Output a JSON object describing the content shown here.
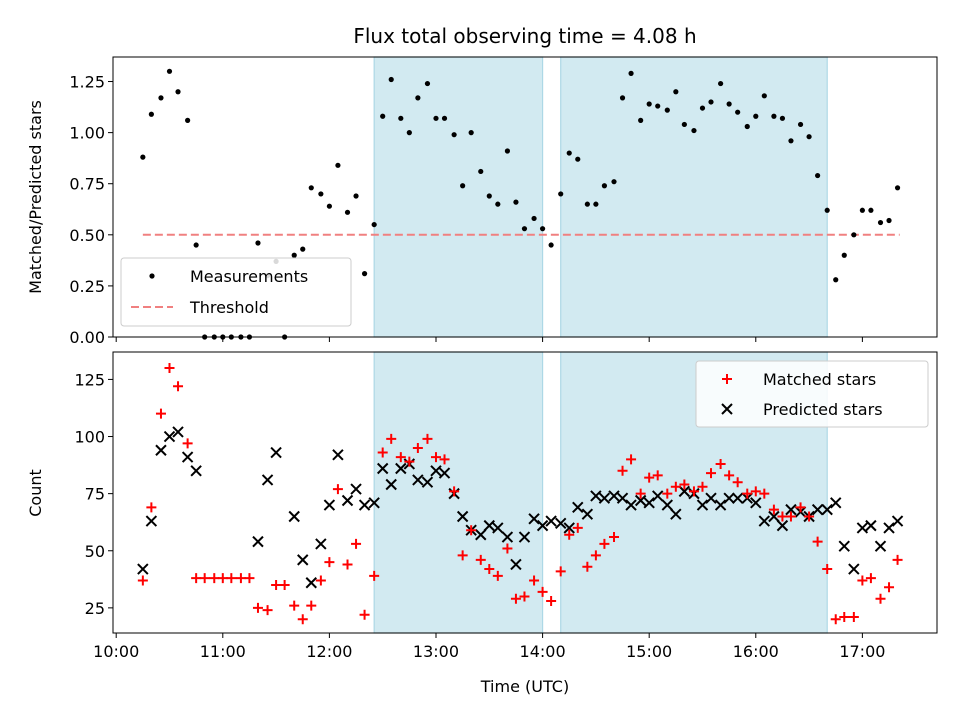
{
  "title": "Flux total observing time = 4.08 h",
  "colors": {
    "measurement": "#000000",
    "threshold": "#f08080",
    "matched": "#ff0000",
    "predicted": "#000000",
    "shade": "#add8e6"
  },
  "chart_data": [
    {
      "type": "scatter",
      "ylabel": "Matched/Predicted stars",
      "xlim": [
        9.97,
        17.7
      ],
      "ylim": [
        0.0,
        1.37
      ],
      "yticks": [
        0.0,
        0.25,
        0.5,
        0.75,
        1.0,
        1.25
      ],
      "ytick_labels": [
        "0.00",
        "0.25",
        "0.50",
        "0.75",
        "1.00",
        "1.25"
      ],
      "legend": {
        "location": "lower-left",
        "entries": [
          "Measurements",
          "Threshold"
        ]
      },
      "shaded_intervals": [
        [
          12.42,
          14.0
        ],
        [
          14.17,
          16.67
        ]
      ],
      "threshold": {
        "name": "Threshold",
        "y": 0.5,
        "x": [
          10.25,
          17.35
        ]
      },
      "series": [
        {
          "name": "Measurements",
          "points": [
            [
              10.25,
              0.88
            ],
            [
              10.33,
              1.09
            ],
            [
              10.42,
              1.17
            ],
            [
              10.5,
              1.3
            ],
            [
              10.58,
              1.2
            ],
            [
              10.67,
              1.06
            ],
            [
              10.75,
              0.45
            ],
            [
              10.83,
              0.0
            ],
            [
              10.92,
              0.0
            ],
            [
              11.0,
              0.0
            ],
            [
              11.08,
              0.0
            ],
            [
              11.17,
              0.0
            ],
            [
              11.25,
              0.0
            ],
            [
              11.33,
              0.46
            ],
            [
              11.42,
              0.3
            ],
            [
              11.5,
              0.37
            ],
            [
              11.58,
              0.0
            ],
            [
              11.67,
              0.4
            ],
            [
              11.75,
              0.43
            ],
            [
              11.83,
              0.73
            ],
            [
              11.92,
              0.7
            ],
            [
              12.0,
              0.64
            ],
            [
              12.08,
              0.84
            ],
            [
              12.17,
              0.61
            ],
            [
              12.25,
              0.69
            ],
            [
              12.33,
              0.31
            ],
            [
              12.42,
              0.55
            ],
            [
              12.5,
              1.08
            ],
            [
              12.58,
              1.26
            ],
            [
              12.67,
              1.07
            ],
            [
              12.75,
              1.0
            ],
            [
              12.83,
              1.17
            ],
            [
              12.92,
              1.24
            ],
            [
              13.0,
              1.07
            ],
            [
              13.08,
              1.07
            ],
            [
              13.17,
              0.99
            ],
            [
              13.25,
              0.74
            ],
            [
              13.33,
              1.0
            ],
            [
              13.42,
              0.81
            ],
            [
              13.5,
              0.69
            ],
            [
              13.58,
              0.65
            ],
            [
              13.67,
              0.91
            ],
            [
              13.75,
              0.66
            ],
            [
              13.83,
              0.53
            ],
            [
              13.92,
              0.58
            ],
            [
              14.0,
              0.53
            ],
            [
              14.08,
              0.45
            ],
            [
              14.17,
              0.7
            ],
            [
              14.25,
              0.9
            ],
            [
              14.33,
              0.87
            ],
            [
              14.42,
              0.65
            ],
            [
              14.5,
              0.65
            ],
            [
              14.58,
              0.74
            ],
            [
              14.67,
              0.76
            ],
            [
              14.75,
              1.17
            ],
            [
              14.83,
              1.29
            ],
            [
              14.92,
              1.06
            ],
            [
              15.0,
              1.14
            ],
            [
              15.08,
              1.13
            ],
            [
              15.17,
              1.11
            ],
            [
              15.25,
              1.2
            ],
            [
              15.33,
              1.04
            ],
            [
              15.42,
              1.01
            ],
            [
              15.5,
              1.12
            ],
            [
              15.58,
              1.15
            ],
            [
              15.67,
              1.24
            ],
            [
              15.75,
              1.14
            ],
            [
              15.83,
              1.1
            ],
            [
              15.92,
              1.03
            ],
            [
              16.0,
              1.08
            ],
            [
              16.08,
              1.18
            ],
            [
              16.17,
              1.08
            ],
            [
              16.25,
              1.07
            ],
            [
              16.33,
              0.96
            ],
            [
              16.42,
              1.04
            ],
            [
              16.5,
              0.98
            ],
            [
              16.58,
              0.79
            ],
            [
              16.67,
              0.62
            ],
            [
              16.75,
              0.28
            ],
            [
              16.83,
              0.4
            ],
            [
              16.92,
              0.5
            ],
            [
              17.0,
              0.62
            ],
            [
              17.08,
              0.62
            ],
            [
              17.17,
              0.56
            ],
            [
              17.25,
              0.57
            ],
            [
              17.33,
              0.73
            ]
          ]
        }
      ]
    },
    {
      "type": "scatter",
      "xlabel": "Time (UTC)",
      "ylabel": "Count",
      "xlim": [
        9.97,
        17.7
      ],
      "ylim": [
        14.0,
        137.0
      ],
      "yticks": [
        25,
        50,
        75,
        100,
        125
      ],
      "xticks": [
        10,
        11,
        12,
        13,
        14,
        15,
        16,
        17
      ],
      "xtick_labels": [
        "10:00",
        "11:00",
        "12:00",
        "13:00",
        "14:00",
        "15:00",
        "16:00",
        "17:00"
      ],
      "legend": {
        "location": "top-right",
        "entries": [
          "Matched stars",
          "Predicted stars"
        ]
      },
      "shaded_intervals": [
        [
          12.42,
          14.0
        ],
        [
          14.17,
          16.67
        ]
      ],
      "series": [
        {
          "name": "Matched stars",
          "marker": "+",
          "points": [
            [
              10.25,
              37
            ],
            [
              10.33,
              69
            ],
            [
              10.42,
              110
            ],
            [
              10.5,
              130
            ],
            [
              10.58,
              122
            ],
            [
              10.67,
              97
            ],
            [
              10.75,
              38
            ],
            [
              10.83,
              38
            ],
            [
              10.92,
              38
            ],
            [
              11.0,
              38
            ],
            [
              11.08,
              38
            ],
            [
              11.17,
              38
            ],
            [
              11.25,
              38
            ],
            [
              11.33,
              25
            ],
            [
              11.42,
              24
            ],
            [
              11.5,
              35
            ],
            [
              11.58,
              35
            ],
            [
              11.67,
              26
            ],
            [
              11.75,
              20
            ],
            [
              11.83,
              26
            ],
            [
              11.92,
              37
            ],
            [
              12.0,
              45
            ],
            [
              12.08,
              77
            ],
            [
              12.17,
              44
            ],
            [
              12.25,
              53
            ],
            [
              12.33,
              22
            ],
            [
              12.42,
              39
            ],
            [
              12.5,
              93
            ],
            [
              12.58,
              99
            ],
            [
              12.67,
              91
            ],
            [
              12.75,
              89
            ],
            [
              12.83,
              95
            ],
            [
              12.92,
              99
            ],
            [
              13.0,
              91
            ],
            [
              13.08,
              90
            ],
            [
              13.17,
              76
            ],
            [
              13.25,
              48
            ],
            [
              13.33,
              59
            ],
            [
              13.42,
              46
            ],
            [
              13.5,
              42
            ],
            [
              13.58,
              39
            ],
            [
              13.67,
              51
            ],
            [
              13.75,
              29
            ],
            [
              13.83,
              30
            ],
            [
              13.92,
              37
            ],
            [
              14.0,
              32
            ],
            [
              14.08,
              28
            ],
            [
              14.17,
              41
            ],
            [
              14.25,
              57
            ],
            [
              14.33,
              60
            ],
            [
              14.42,
              43
            ],
            [
              14.5,
              48
            ],
            [
              14.58,
              53
            ],
            [
              14.67,
              56
            ],
            [
              14.75,
              85
            ],
            [
              14.83,
              90
            ],
            [
              14.92,
              75
            ],
            [
              15.0,
              82
            ],
            [
              15.08,
              83
            ],
            [
              15.17,
              75
            ],
            [
              15.25,
              78
            ],
            [
              15.33,
              79
            ],
            [
              15.42,
              76
            ],
            [
              15.5,
              78
            ],
            [
              15.58,
              84
            ],
            [
              15.67,
              88
            ],
            [
              15.75,
              83
            ],
            [
              15.83,
              80
            ],
            [
              15.92,
              75
            ],
            [
              16.0,
              76
            ],
            [
              16.08,
              75
            ],
            [
              16.17,
              68
            ],
            [
              16.25,
              65
            ],
            [
              16.33,
              65
            ],
            [
              16.42,
              69
            ],
            [
              16.5,
              65
            ],
            [
              16.58,
              54
            ],
            [
              16.67,
              42
            ],
            [
              16.75,
              20
            ],
            [
              16.83,
              21
            ],
            [
              16.92,
              21
            ],
            [
              17.0,
              37
            ],
            [
              17.08,
              38
            ],
            [
              17.17,
              29
            ],
            [
              17.25,
              34
            ],
            [
              17.33,
              46
            ]
          ]
        },
        {
          "name": "Predicted stars",
          "marker": "x",
          "points": [
            [
              10.25,
              42
            ],
            [
              10.33,
              63
            ],
            [
              10.42,
              94
            ],
            [
              10.5,
              100
            ],
            [
              10.58,
              102
            ],
            [
              10.67,
              91
            ],
            [
              10.75,
              85
            ],
            [
              11.33,
              54
            ],
            [
              11.42,
              81
            ],
            [
              11.5,
              93
            ],
            [
              11.67,
              65
            ],
            [
              11.75,
              46
            ],
            [
              11.83,
              36
            ],
            [
              11.92,
              53
            ],
            [
              12.0,
              70
            ],
            [
              12.08,
              92
            ],
            [
              12.17,
              72
            ],
            [
              12.25,
              77
            ],
            [
              12.33,
              70
            ],
            [
              12.42,
              71
            ],
            [
              12.5,
              86
            ],
            [
              12.58,
              79
            ],
            [
              12.67,
              86
            ],
            [
              12.75,
              88
            ],
            [
              12.83,
              81
            ],
            [
              12.92,
              80
            ],
            [
              13.0,
              85
            ],
            [
              13.08,
              84
            ],
            [
              13.17,
              75
            ],
            [
              13.25,
              65
            ],
            [
              13.33,
              59
            ],
            [
              13.42,
              57
            ],
            [
              13.5,
              61
            ],
            [
              13.58,
              60
            ],
            [
              13.67,
              56
            ],
            [
              13.75,
              44
            ],
            [
              13.83,
              56
            ],
            [
              13.92,
              64
            ],
            [
              14.0,
              61
            ],
            [
              14.08,
              63
            ],
            [
              14.17,
              62
            ],
            [
              14.25,
              60
            ],
            [
              14.33,
              69
            ],
            [
              14.42,
              66
            ],
            [
              14.5,
              74
            ],
            [
              14.58,
              73
            ],
            [
              14.67,
              74
            ],
            [
              14.75,
              73
            ],
            [
              14.83,
              70
            ],
            [
              14.92,
              72
            ],
            [
              15.0,
              71
            ],
            [
              15.08,
              74
            ],
            [
              15.17,
              70
            ],
            [
              15.25,
              66
            ],
            [
              15.33,
              76
            ],
            [
              15.42,
              75
            ],
            [
              15.5,
              70
            ],
            [
              15.58,
              73
            ],
            [
              15.67,
              70
            ],
            [
              15.75,
              73
            ],
            [
              15.83,
              73
            ],
            [
              15.92,
              73
            ],
            [
              16.0,
              71
            ],
            [
              16.08,
              63
            ],
            [
              16.17,
              65
            ],
            [
              16.25,
              61
            ],
            [
              16.33,
              68
            ],
            [
              16.42,
              67
            ],
            [
              16.5,
              65
            ],
            [
              16.58,
              68
            ],
            [
              16.67,
              68
            ],
            [
              16.75,
              71
            ],
            [
              16.83,
              52
            ],
            [
              16.92,
              42
            ],
            [
              17.0,
              60
            ],
            [
              17.08,
              61
            ],
            [
              17.17,
              52
            ],
            [
              17.25,
              60
            ],
            [
              17.33,
              63
            ]
          ]
        }
      ]
    }
  ]
}
